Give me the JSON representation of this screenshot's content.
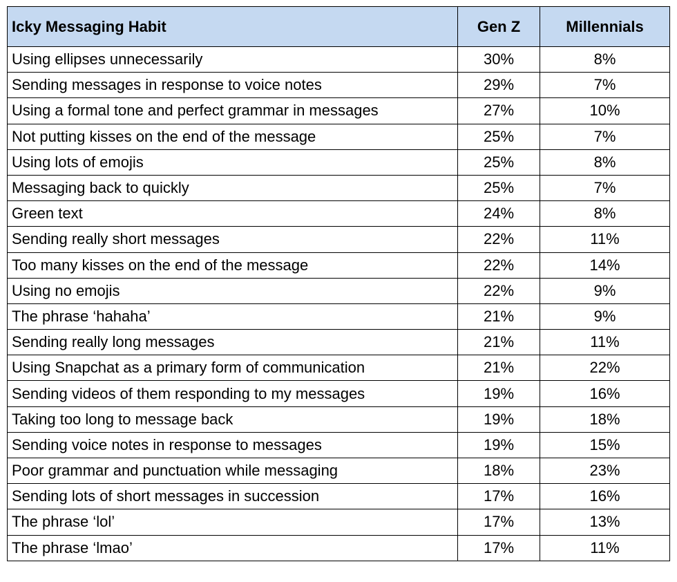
{
  "chart_data": {
    "type": "table",
    "columns": [
      "Icky Messaging Habit",
      "Gen Z",
      "Millennials"
    ],
    "rows": [
      {
        "habit": "Using ellipses unnecessarily",
        "gen_z": "30%",
        "millennials": "8%"
      },
      {
        "habit": "Sending messages in response to voice notes",
        "gen_z": "29%",
        "millennials": "7%"
      },
      {
        "habit": "Using a formal tone and perfect grammar in messages",
        "gen_z": "27%",
        "millennials": "10%"
      },
      {
        "habit": "Not putting kisses on the end of the message",
        "gen_z": "25%",
        "millennials": "7%"
      },
      {
        "habit": "Using lots of emojis",
        "gen_z": "25%",
        "millennials": "8%"
      },
      {
        "habit": "Messaging back to quickly",
        "gen_z": "25%",
        "millennials": "7%"
      },
      {
        "habit": "Green text",
        "gen_z": "24%",
        "millennials": "8%"
      },
      {
        "habit": "Sending really short messages",
        "gen_z": "22%",
        "millennials": "11%"
      },
      {
        "habit": "Too many kisses on the end of the message",
        "gen_z": "22%",
        "millennials": "14%"
      },
      {
        "habit": "Using no emojis",
        "gen_z": "22%",
        "millennials": "9%"
      },
      {
        "habit": "The phrase ‘hahaha’",
        "gen_z": "21%",
        "millennials": "9%"
      },
      {
        "habit": "Sending really long messages",
        "gen_z": "21%",
        "millennials": "11%"
      },
      {
        "habit": "Using Snapchat as a primary form of communication",
        "gen_z": "21%",
        "millennials": "22%"
      },
      {
        "habit": "Sending videos of them responding to my messages",
        "gen_z": "19%",
        "millennials": "16%"
      },
      {
        "habit": "Taking too long to message back",
        "gen_z": "19%",
        "millennials": "18%"
      },
      {
        "habit": "Sending voice notes in response to messages",
        "gen_z": "19%",
        "millennials": "15%"
      },
      {
        "habit": "Poor grammar and punctuation while messaging",
        "gen_z": "18%",
        "millennials": "23%"
      },
      {
        "habit": "Sending lots of short messages in succession",
        "gen_z": "17%",
        "millennials": "16%"
      },
      {
        "habit": "The phrase ‘lol’",
        "gen_z": "17%",
        "millennials": "13%"
      },
      {
        "habit": "The phrase ‘lmao’",
        "gen_z": "17%",
        "millennials": "11%"
      }
    ],
    "colors": {
      "header_background": "#c5d9f1",
      "border": "#000000"
    }
  }
}
